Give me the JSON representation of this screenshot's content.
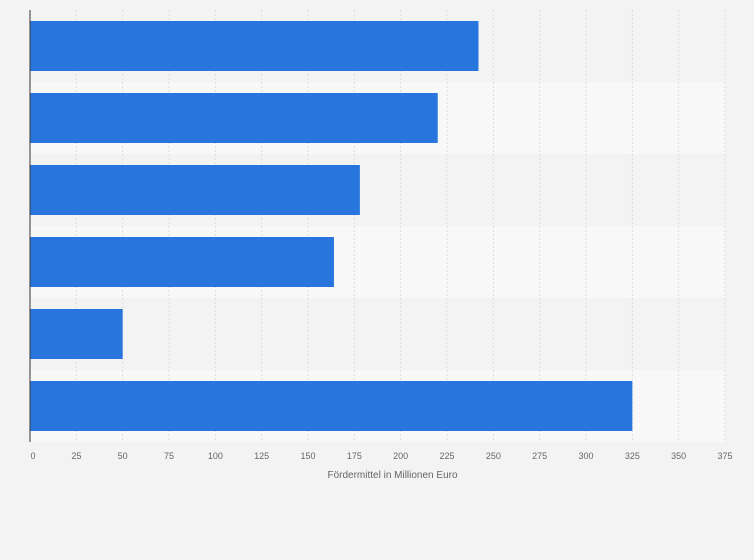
{
  "chart_data": {
    "type": "bar",
    "orientation": "horizontal",
    "categories": [
      "",
      "",
      "",
      "",
      "",
      ""
    ],
    "values": [
      242,
      220,
      178,
      164,
      50,
      325
    ],
    "title": "",
    "xlabel": "Fördermittel in Millionen Euro",
    "ylabel": "",
    "xlim": [
      0,
      375
    ],
    "xticks": [
      "0",
      "25",
      "50",
      "75",
      "100",
      "125",
      "150",
      "175",
      "200",
      "225",
      "250",
      "275",
      "300",
      "325",
      "350",
      "375"
    ],
    "grid": true,
    "legend": "none",
    "colors": {
      "bar": "#2876dd",
      "background": "#f3f3f3",
      "band_odd": "#f3f3f3",
      "band_even": "#f8f8f8",
      "gridline": "#dcdcdc",
      "axis": "#333333",
      "tick_text": "#666666"
    }
  }
}
